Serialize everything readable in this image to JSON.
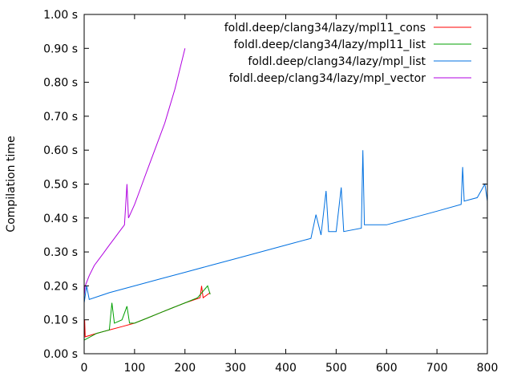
{
  "chart_data": {
    "type": "line",
    "title": "",
    "xlabel": "",
    "ylabel": "Compilation time",
    "xlim": [
      0,
      800
    ],
    "ylim": [
      0,
      1.0
    ],
    "x_ticks": [
      "0",
      "100",
      "200",
      "300",
      "400",
      "500",
      "600",
      "700",
      "800"
    ],
    "y_ticks": [
      "0.00 s",
      "0.10 s",
      "0.20 s",
      "0.30 s",
      "0.40 s",
      "0.50 s",
      "0.60 s",
      "0.70 s",
      "0.80 s",
      "0.90 s",
      "1.00 s"
    ],
    "grid": false,
    "legend_position": "top-right",
    "series": [
      {
        "name": "foldl.deep/clang34/lazy/mpl11_cons",
        "color": "#ff0000",
        "points": [
          [
            0,
            0.04
          ],
          [
            1,
            0.1
          ],
          [
            2,
            0.05
          ],
          [
            25,
            0.06
          ],
          [
            50,
            0.07
          ],
          [
            75,
            0.08
          ],
          [
            100,
            0.09
          ],
          [
            125,
            0.105
          ],
          [
            150,
            0.12
          ],
          [
            175,
            0.135
          ],
          [
            200,
            0.15
          ],
          [
            230,
            0.165
          ],
          [
            233,
            0.2
          ],
          [
            236,
            0.165
          ],
          [
            250,
            0.18
          ]
        ]
      },
      {
        "name": "foldl.deep/clang34/lazy/mpl11_list",
        "color": "#00a000",
        "points": [
          [
            0,
            0.04
          ],
          [
            25,
            0.06
          ],
          [
            50,
            0.07
          ],
          [
            55,
            0.15
          ],
          [
            60,
            0.09
          ],
          [
            75,
            0.1
          ],
          [
            85,
            0.14
          ],
          [
            90,
            0.09
          ],
          [
            100,
            0.09
          ],
          [
            125,
            0.105
          ],
          [
            150,
            0.12
          ],
          [
            175,
            0.135
          ],
          [
            200,
            0.15
          ],
          [
            225,
            0.165
          ],
          [
            245,
            0.2
          ],
          [
            250,
            0.175
          ]
        ]
      },
      {
        "name": "foldl.deep/clang34/lazy/mpl_list",
        "color": "#0070e0",
        "points": [
          [
            0,
            0.15
          ],
          [
            5,
            0.2
          ],
          [
            10,
            0.16
          ],
          [
            50,
            0.18
          ],
          [
            100,
            0.2
          ],
          [
            150,
            0.22
          ],
          [
            200,
            0.24
          ],
          [
            250,
            0.26
          ],
          [
            300,
            0.28
          ],
          [
            350,
            0.3
          ],
          [
            400,
            0.32
          ],
          [
            450,
            0.34
          ],
          [
            460,
            0.41
          ],
          [
            470,
            0.35
          ],
          [
            480,
            0.48
          ],
          [
            485,
            0.36
          ],
          [
            500,
            0.36
          ],
          [
            510,
            0.49
          ],
          [
            515,
            0.36
          ],
          [
            550,
            0.37
          ],
          [
            553,
            0.6
          ],
          [
            556,
            0.38
          ],
          [
            600,
            0.38
          ],
          [
            650,
            0.4
          ],
          [
            700,
            0.42
          ],
          [
            748,
            0.44
          ],
          [
            751,
            0.55
          ],
          [
            754,
            0.45
          ],
          [
            780,
            0.46
          ],
          [
            795,
            0.5
          ],
          [
            800,
            0.45
          ]
        ]
      },
      {
        "name": "foldl.deep/clang34/lazy/mpl_vector",
        "color": "#b000e0",
        "points": [
          [
            0,
            0.17
          ],
          [
            2,
            0.2
          ],
          [
            10,
            0.23
          ],
          [
            20,
            0.26
          ],
          [
            30,
            0.28
          ],
          [
            40,
            0.3
          ],
          [
            50,
            0.32
          ],
          [
            60,
            0.34
          ],
          [
            70,
            0.36
          ],
          [
            80,
            0.38
          ],
          [
            85,
            0.5
          ],
          [
            88,
            0.4
          ],
          [
            100,
            0.44
          ],
          [
            110,
            0.48
          ],
          [
            120,
            0.52
          ],
          [
            130,
            0.56
          ],
          [
            140,
            0.6
          ],
          [
            150,
            0.64
          ],
          [
            160,
            0.68
          ],
          [
            170,
            0.73
          ],
          [
            180,
            0.78
          ],
          [
            190,
            0.84
          ],
          [
            200,
            0.9
          ]
        ]
      }
    ]
  }
}
